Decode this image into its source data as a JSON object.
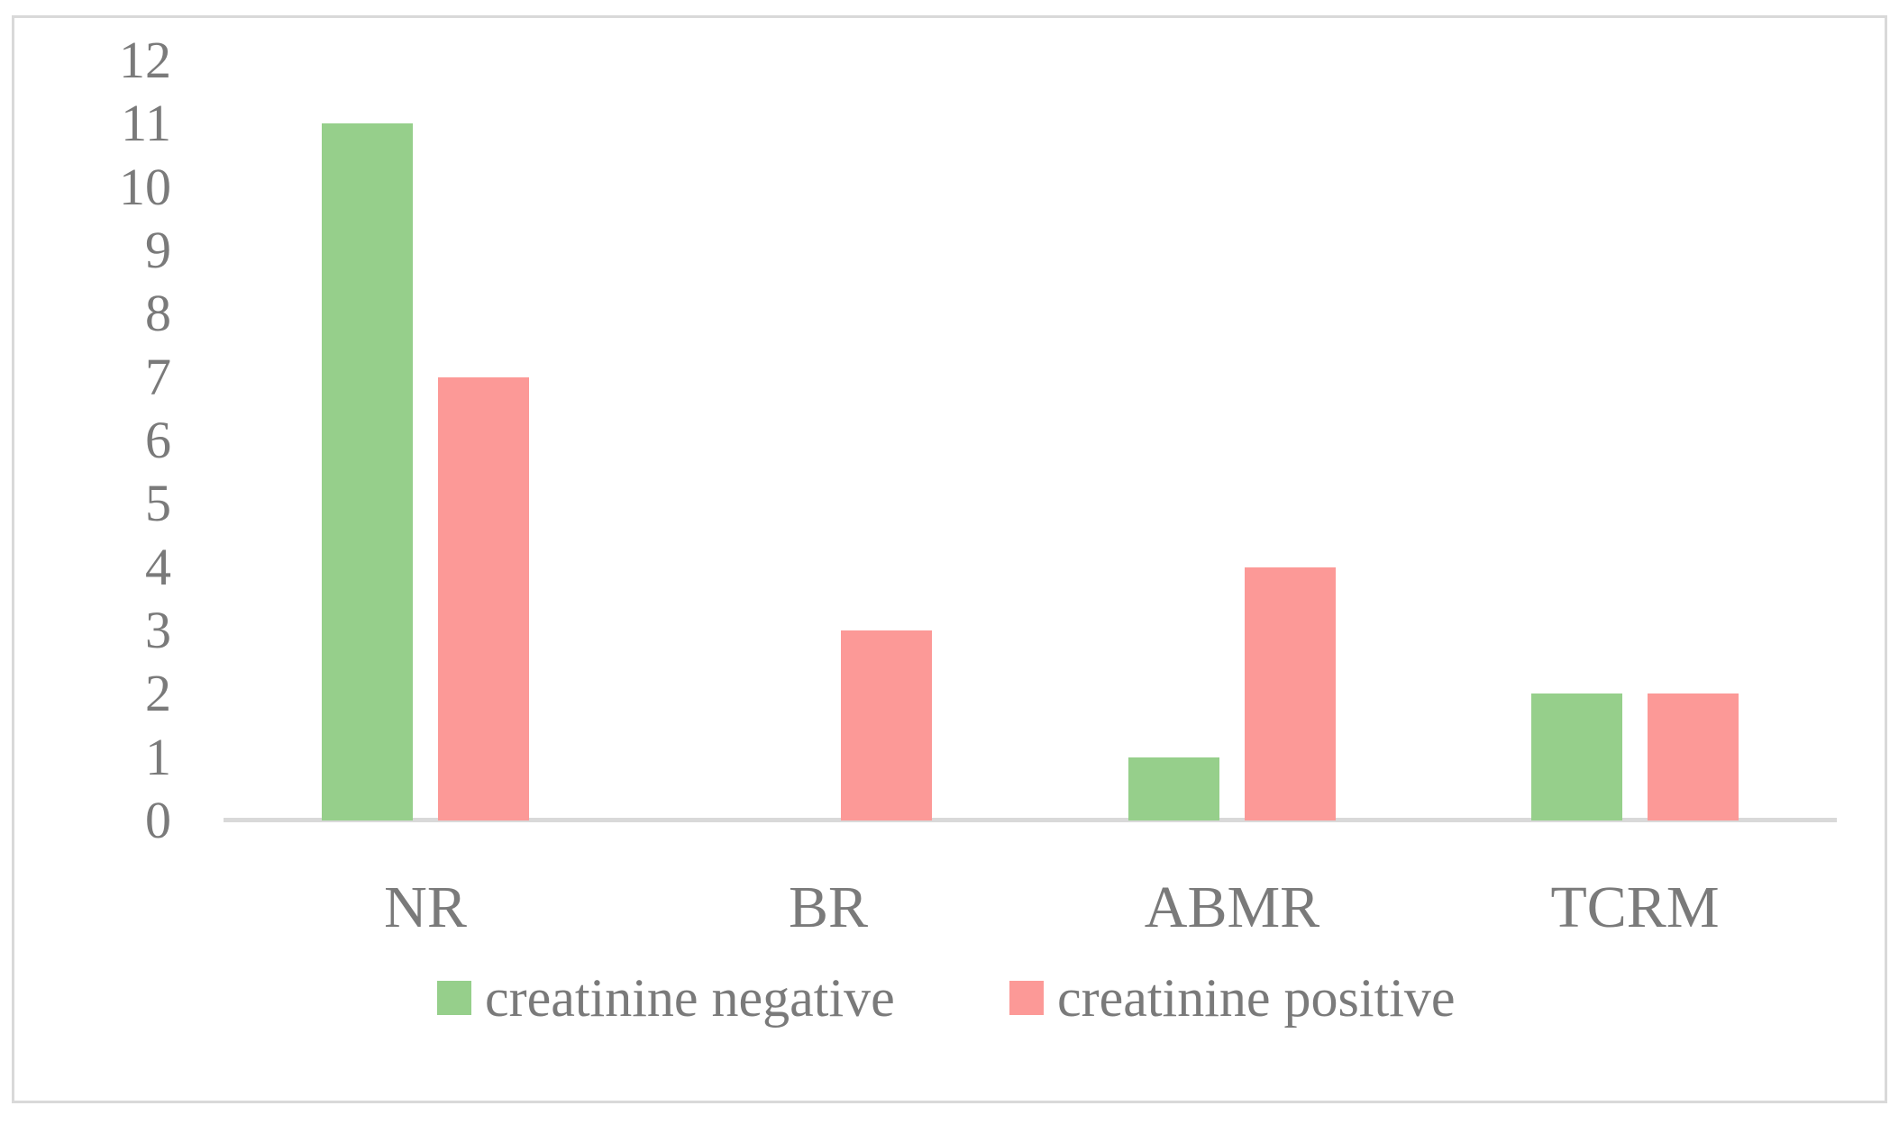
{
  "chart_data": {
    "type": "bar",
    "categories": [
      "NR",
      "BR",
      "ABMR",
      "TCRM"
    ],
    "series": [
      {
        "name": "creatinine negative",
        "color": "#96CF8B",
        "values": [
          11,
          0,
          1,
          2
        ]
      },
      {
        "name": "creatinine positive",
        "color": "#FC9997",
        "values": [
          7,
          3,
          4,
          2
        ]
      }
    ],
    "title": "",
    "xlabel": "",
    "ylabel": "",
    "ylim": [
      0,
      12
    ],
    "yticks": [
      0,
      1,
      2,
      3,
      4,
      5,
      6,
      7,
      8,
      9,
      10,
      11,
      12
    ],
    "grid": false,
    "legend_position": "bottom"
  },
  "colors": {
    "axis_line": "#D9D9D9",
    "frame_border": "#D9D9D9",
    "text": "#7A7A7A",
    "background": "#FFFFFF"
  }
}
